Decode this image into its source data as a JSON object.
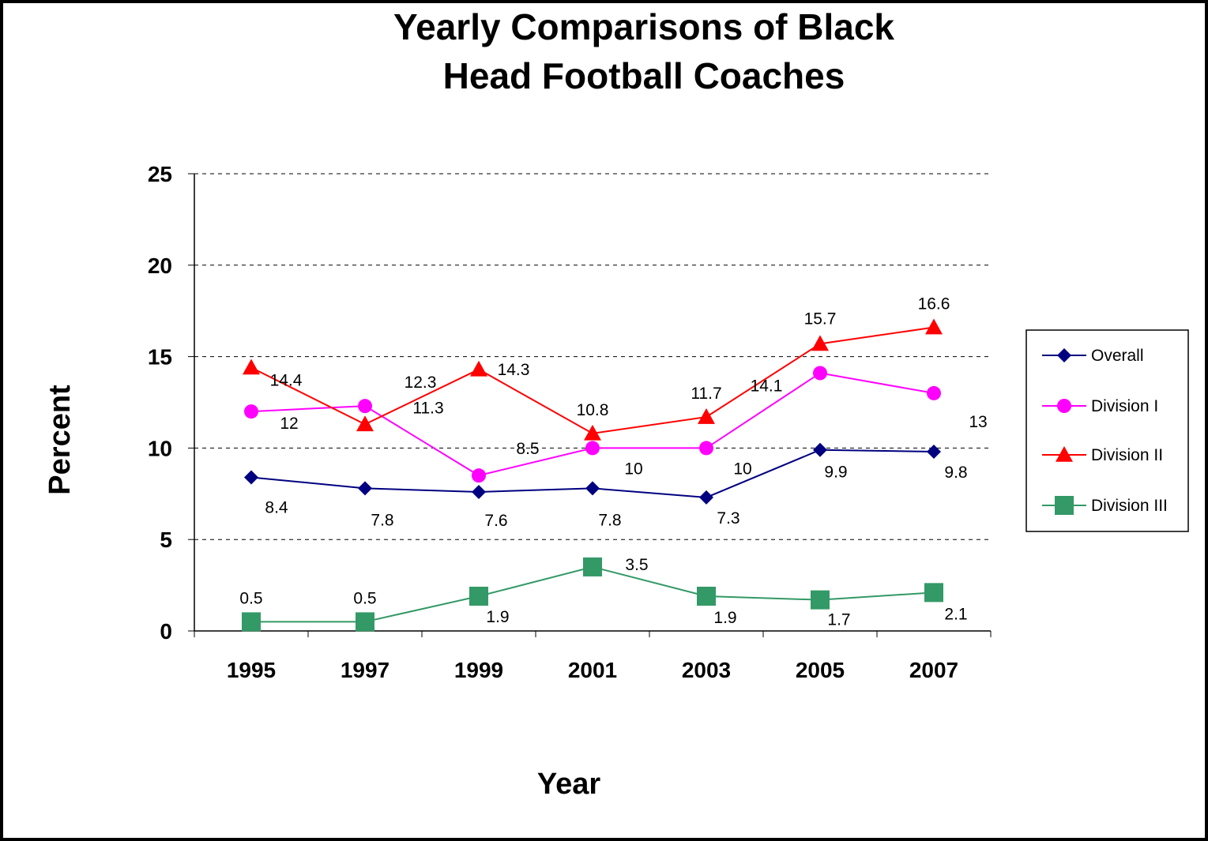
{
  "chart_data": {
    "type": "line",
    "title_lines": [
      "Yearly Comparisons of Black",
      "Head Football Coaches"
    ],
    "xlabel": "Year",
    "ylabel": "Percent",
    "categories": [
      "1995",
      "1997",
      "1999",
      "2001",
      "2003",
      "2005",
      "2007"
    ],
    "ylim": [
      0,
      25
    ],
    "yticks": [
      "0",
      "5",
      "10",
      "15",
      "20",
      "25"
    ],
    "grid": true,
    "legend_position": "right",
    "series": [
      {
        "name": "Overall",
        "values": [
          8.4,
          7.8,
          7.6,
          7.8,
          7.3,
          9.9,
          9.8
        ],
        "labels": [
          "8.4",
          "7.8",
          "7.6",
          "7.8",
          "7.3",
          "9.9",
          "9.8"
        ],
        "color": "#000080",
        "marker": "diamond"
      },
      {
        "name": "Division I",
        "values": [
          12,
          12.3,
          8.5,
          10,
          10,
          14.1,
          13
        ],
        "labels": [
          "12",
          "12.3",
          "8.5",
          "10",
          "10",
          "14.1",
          "13"
        ],
        "color": "#ff00ff",
        "marker": "circle"
      },
      {
        "name": "Division II",
        "values": [
          14.4,
          11.3,
          14.3,
          10.8,
          11.7,
          15.7,
          16.6
        ],
        "labels": [
          "14.4",
          "11.3",
          "14.3",
          "10.8",
          "11.7",
          "15.7",
          "16.6"
        ],
        "color": "#ff0000",
        "marker": "triangle"
      },
      {
        "name": "Division III",
        "values": [
          0.5,
          0.5,
          1.9,
          3.5,
          1.9,
          1.7,
          2.1
        ],
        "labels": [
          "0.5",
          "0.5",
          "1.9",
          "3.5",
          "1.9",
          "1.7",
          "2.1"
        ],
        "color": "#339966",
        "marker": "square"
      }
    ]
  }
}
